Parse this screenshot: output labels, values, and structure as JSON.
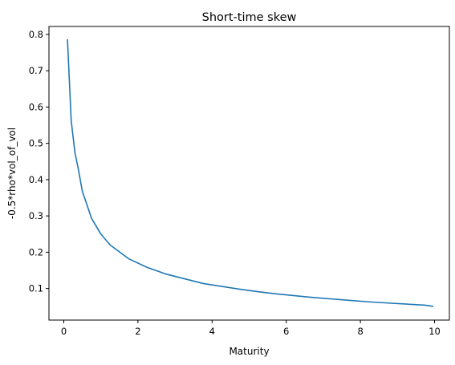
{
  "chart_data": {
    "type": "line",
    "title": "Short-time skew",
    "xlabel": "Maturity",
    "ylabel": "-0.5*rho*vol_of_vol",
    "xlim": [
      -0.4,
      10.4
    ],
    "ylim": [
      0.013,
      0.822
    ],
    "xticks": [
      0,
      2,
      4,
      6,
      8,
      10
    ],
    "yticks": [
      0.1,
      0.2,
      0.3,
      0.4,
      0.5,
      0.6,
      0.7,
      0.8
    ],
    "grid": false,
    "series": [
      {
        "color": "#1f77b4",
        "x": [
          0.1,
          0.2,
          0.3,
          0.4,
          0.5,
          0.75,
          1.0,
          1.25,
          1.75,
          2.25,
          2.75,
          3.25,
          3.75,
          4.25,
          4.75,
          5.25,
          5.75,
          6.25,
          6.75,
          7.25,
          7.75,
          8.25,
          8.75,
          9.25,
          9.75,
          9.95
        ],
        "y": [
          0.785,
          0.563,
          0.475,
          0.425,
          0.368,
          0.293,
          0.25,
          0.22,
          0.182,
          0.158,
          0.14,
          0.127,
          0.114,
          0.106,
          0.098,
          0.091,
          0.085,
          0.08,
          0.075,
          0.071,
          0.067,
          0.063,
          0.06,
          0.057,
          0.054,
          0.051
        ]
      }
    ]
  }
}
